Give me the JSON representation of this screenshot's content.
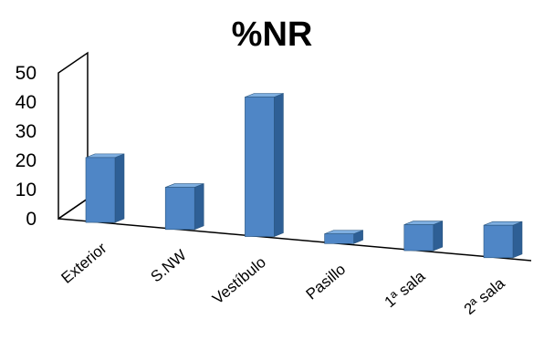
{
  "chart_data": {
    "type": "bar",
    "title": "%NR",
    "categories": [
      "Exterior",
      "S.NW",
      "Vestíbulo",
      "Pasillo",
      "1ª sala",
      "2ª sala"
    ],
    "values": [
      20,
      13,
      43,
      3,
      8,
      10
    ],
    "ylim": [
      0,
      50
    ],
    "yticks": [
      0,
      10,
      20,
      30,
      40,
      50
    ],
    "xlabel": "",
    "ylabel": "",
    "grid": false,
    "legend": "none",
    "colors": {
      "bar_front": "#4f86c6",
      "bar_side": "#2e5f95",
      "bar_top": "#7eaee0",
      "bar_edge": "#2a5680",
      "axis": "#000000"
    }
  }
}
